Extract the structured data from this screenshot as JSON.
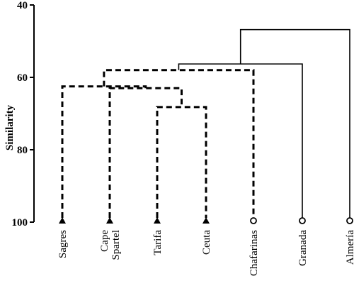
{
  "chart_data": {
    "type": "dendrogram",
    "ylabel": "Similarity",
    "ylim": [
      40,
      100
    ],
    "yticks": [
      40,
      60,
      80,
      100
    ],
    "y_inverted": true,
    "leaves": [
      {
        "label": [
          "Sagres"
        ],
        "marker": "triangle",
        "group": "dashed"
      },
      {
        "label": [
          "Cape",
          "Spartel"
        ],
        "marker": "triangle",
        "group": "dashed"
      },
      {
        "label": [
          "Tarifa"
        ],
        "marker": "triangle",
        "group": "dashed"
      },
      {
        "label": [
          "Ceuta"
        ],
        "marker": "triangle",
        "group": "dashed"
      },
      {
        "label": [
          "Chafarinas"
        ],
        "marker": "circle",
        "group": "dashed"
      },
      {
        "label": [
          "Granada"
        ],
        "marker": "circle",
        "group": "solid"
      },
      {
        "label": [
          "Almería"
        ],
        "marker": "circle",
        "group": "solid"
      }
    ],
    "merges": [
      {
        "id": "m1",
        "children": [
          "leaf:2",
          "leaf:3"
        ],
        "similarity": 68.2,
        "style": "dashed"
      },
      {
        "id": "m2",
        "children": [
          "leaf:1",
          "m1"
        ],
        "similarity": 63.0,
        "style": "dashed"
      },
      {
        "id": "m3",
        "children": [
          "leaf:0",
          "m2"
        ],
        "similarity": 62.5,
        "style": "dashed"
      },
      {
        "id": "m4",
        "children": [
          "m3",
          "leaf:4"
        ],
        "similarity": 58.0,
        "style": "dashed"
      },
      {
        "id": "m5",
        "children": [
          "m4",
          "leaf:5"
        ],
        "similarity": 56.3,
        "style": "solid"
      },
      {
        "id": "m6",
        "children": [
          "m5",
          "leaf:6"
        ],
        "similarity": 46.8,
        "style": "solid"
      }
    ]
  }
}
